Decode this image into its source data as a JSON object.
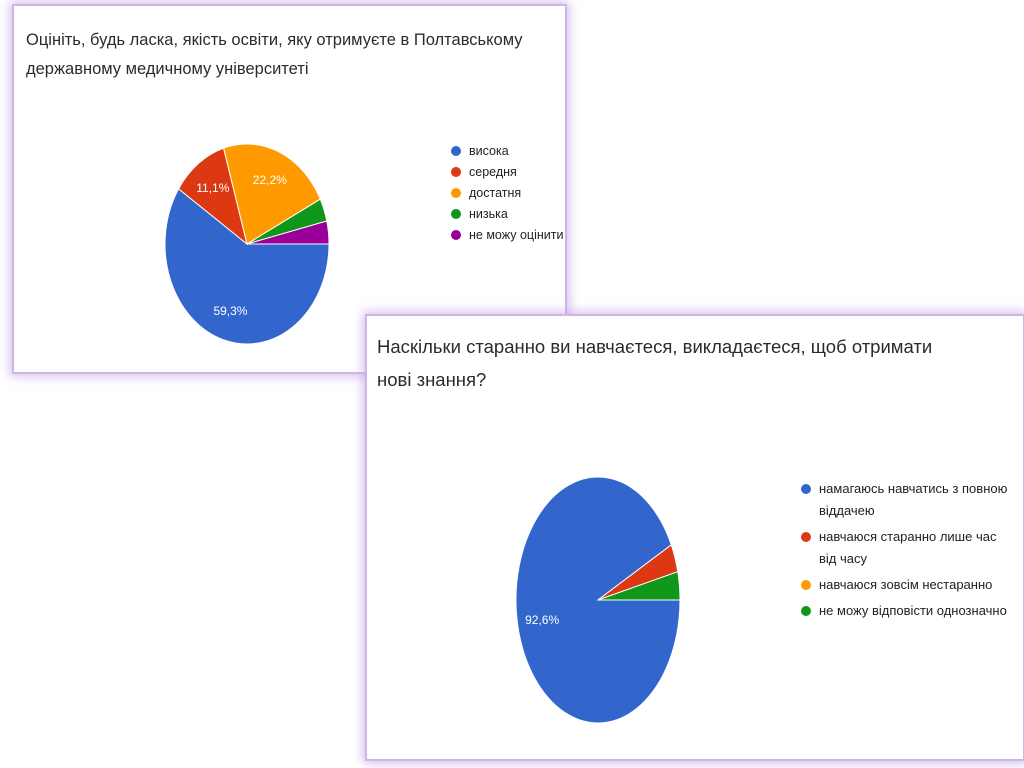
{
  "chart_data": [
    {
      "type": "pie",
      "title": "Оцініть, будь ласка,  якість освіти, яку отримуєте в Полтавському державному медичному університеті",
      "categories": [
        "висока",
        "середня",
        "достатня",
        "низька",
        "не можу оцінити"
      ],
      "values": [
        59.3,
        11.1,
        22.2,
        3.7,
        3.7
      ],
      "labels": [
        "59,3%",
        "11,1%",
        "22,2%",
        "",
        ""
      ],
      "colors": [
        "#3366cc",
        "#dc3912",
        "#ff9900",
        "#109618",
        "#990099"
      ],
      "legend_position": "right"
    },
    {
      "type": "pie",
      "title": "Наскільки старанно ви навчаєтеся, викладаєтеся, щоб отримати нові знання?",
      "categories": [
        "намагаюсь навчатись з повною віддачею",
        "навчаюся старанно лише час від часу",
        "навчаюся зовсім нестаранно",
        "не можу відповісти однозначно"
      ],
      "values": [
        92.6,
        3.7,
        0,
        3.7
      ],
      "labels": [
        "92,6%",
        "",
        "",
        ""
      ],
      "colors": [
        "#3366cc",
        "#dc3912",
        "#ff9900",
        "#109618"
      ],
      "legend_position": "right"
    }
  ]
}
